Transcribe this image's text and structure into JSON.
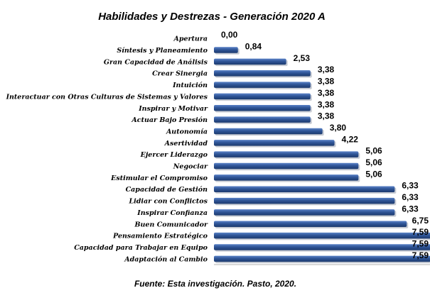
{
  "chart_data": {
    "type": "bar",
    "orientation": "horizontal",
    "title": "Habilidades y Destrezas - Generación 2020 A",
    "source": "Fuente: Esta investigación. Pasto, 2020.",
    "xlim": [
      0,
      7.59
    ],
    "grid": false,
    "legend": "none",
    "bar_color": "#2f5597",
    "categories": [
      "Apertura",
      "Síntesis y Planeamiento",
      "Gran Capacidad de Análisis",
      "Crear Sinergia",
      "Intuición",
      "Interactuar con Otras Culturas de Sistemas y Valores",
      "Inspirar y Motivar",
      "Actuar Bajo Presión",
      "Autonomía",
      "Asertividad",
      "Ejercer Liderazgo",
      "Negociar",
      "Estimular el Compromiso",
      "Capacidad de Gestión",
      "Lidiar con Conflictos",
      "Inspirar Confianza",
      "Buen Comunicador",
      "Pensamiento Estratégico",
      "Capacidad para Trabajar en Equipo",
      "Adaptación al Cambio"
    ],
    "values": [
      0.0,
      0.84,
      2.53,
      3.38,
      3.38,
      3.38,
      3.38,
      3.38,
      3.8,
      4.22,
      5.06,
      5.06,
      5.06,
      6.33,
      6.33,
      6.33,
      6.75,
      7.59,
      7.59,
      7.59
    ],
    "value_labels": [
      "0,00",
      "0,84",
      "2,53",
      "3,38",
      "3,38",
      "3,38",
      "3,38",
      "3,38",
      "3,80",
      "4,22",
      "5,06",
      "5,06",
      "5,06",
      "6,33",
      "6,33",
      "6,33",
      "6,75",
      "7,59",
      "7,59",
      "7,59"
    ]
  }
}
